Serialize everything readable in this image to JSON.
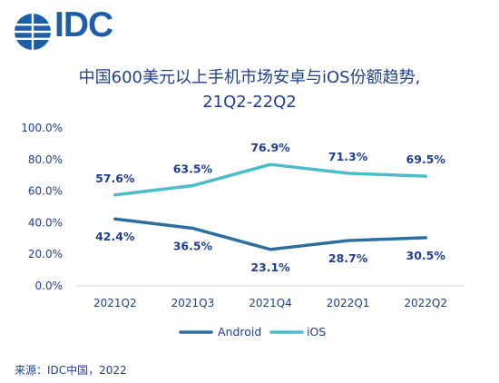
{
  "logo": {
    "text": "IDC",
    "color": "#1c5fa8"
  },
  "title": {
    "line1": "中国600美元以上手机市场安卓与iOS份额趋势,",
    "line2": "21Q2-22Q2",
    "color": "#1f3f8f"
  },
  "source": "来源：IDC中国，2022",
  "chart_data": {
    "type": "line",
    "categories": [
      "2021Q2",
      "2021Q3",
      "2021Q4",
      "2022Q1",
      "2022Q2"
    ],
    "series": [
      {
        "name": "Android",
        "color": "#2a6f9e",
        "values": [
          42.4,
          36.5,
          23.1,
          28.7,
          30.5
        ],
        "labels": [
          "42.4%",
          "36.5%",
          "23.1%",
          "28.7%",
          "30.5%"
        ]
      },
      {
        "name": "iOS",
        "color": "#4bbcc9",
        "values": [
          57.6,
          63.5,
          76.9,
          71.3,
          69.5
        ],
        "labels": [
          "57.6%",
          "63.5%",
          "76.9%",
          "71.3%",
          "69.5%"
        ]
      }
    ],
    "yticks": [
      "0.0%",
      "20.0%",
      "40.0%",
      "60.0%",
      "80.0%",
      "100.0%"
    ],
    "ylim": [
      0,
      100
    ],
    "grid": false,
    "legend": "bottom-center"
  }
}
